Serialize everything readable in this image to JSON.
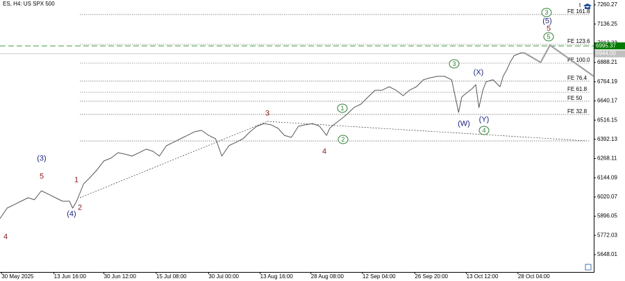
{
  "chart_data": {
    "type": "line",
    "title": "ES, H4:  US SPX 500",
    "xlim": [
      0,
      760
    ],
    "ylim": [
      5536,
      7291.6
    ],
    "xticks": [
      {
        "value": 2,
        "label": "30 May 2025"
      },
      {
        "value": 69,
        "label": "13 Jun 16:00"
      },
      {
        "value": 133,
        "label": "30 Jun 12:00"
      },
      {
        "value": 200,
        "label": "15 Jul 08:00"
      },
      {
        "value": 267,
        "label": "30 Jul 00:00"
      },
      {
        "value": 333,
        "label": "13 Aug 16:00"
      },
      {
        "value": 398,
        "label": "28 Aug 08:00"
      },
      {
        "value": 464,
        "label": "12 Sep 04:00"
      },
      {
        "value": 531,
        "label": "26 Sep 20:00"
      },
      {
        "value": 597,
        "label": "13 Oct 12:00"
      },
      {
        "value": 663,
        "label": "28 Oct 04:00"
      }
    ],
    "yticks": [
      7260.27,
      7136.25,
      7012.23,
      6888.21,
      6764.19,
      6640.17,
      6516.15,
      6392.13,
      6268.11,
      6144.09,
      6020.07,
      5896.05,
      5772.03,
      5648.01
    ],
    "series": [
      {
        "color": "#555555",
        "x": [
          0,
          9,
          18,
          27,
          36,
          44,
          53,
          62,
          71,
          80,
          89,
          93,
          98,
          107,
          116,
          124,
          133,
          142,
          151,
          160,
          169,
          178,
          187,
          196,
          204,
          213,
          222,
          231,
          240,
          249,
          258,
          267,
          276,
          284,
          293,
          302,
          311,
          320,
          329,
          338,
          347,
          356,
          364,
          373,
          382,
          391,
          400,
          409,
          418,
          422,
          427,
          436,
          444,
          453,
          462,
          471,
          480,
          489,
          498,
          507,
          516,
          524,
          533,
          542,
          551,
          560,
          569,
          578,
          587,
          591,
          596,
          604,
          609,
          613,
          618,
          622,
          631,
          640,
          644,
          649,
          653,
          658,
          667,
          671
        ],
        "values": [
          5881,
          5948,
          5970,
          5993,
          6015,
          6002,
          6060,
          6038,
          6015,
          5993,
          5993,
          5948,
          5993,
          6105,
          6150,
          6194,
          6253,
          6271,
          6306,
          6297,
          6284,
          6306,
          6329,
          6315,
          6284,
          6351,
          6373,
          6396,
          6418,
          6441,
          6450,
          6418,
          6396,
          6284,
          6351,
          6373,
          6396,
          6441,
          6477,
          6494,
          6486,
          6463,
          6418,
          6405,
          6477,
          6486,
          6494,
          6477,
          6418,
          6463,
          6486,
          6521,
          6553,
          6597,
          6620,
          6665,
          6709,
          6709,
          6732,
          6709,
          6674,
          6709,
          6732,
          6777,
          6790,
          6799,
          6799,
          6777,
          6566,
          6665,
          6687,
          6718,
          6745,
          6597,
          6709,
          6763,
          6777,
          6732,
          6799,
          6844,
          6889,
          6933,
          6951,
          6951
        ]
      },
      {
        "color": "#a0a0a0",
        "x": [
          671,
          692,
          704,
          760
        ],
        "values": [
          6951,
          6889,
          7000,
          6799
        ]
      }
    ],
    "levels": [
      {
        "label": "FE 161.8",
        "value": 7198
      },
      {
        "label": "FE 123.6",
        "value": 7005
      },
      {
        "label": "FE 100.0",
        "value": 6884
      },
      {
        "label": "FE 76.4",
        "value": 6768
      },
      {
        "label": "FE 61.8",
        "value": 6696
      },
      {
        "label": "FE 50",
        "value": 6638
      },
      {
        "label": "FE 32.8",
        "value": 6553
      },
      {
        "label": null,
        "value": 6382
      }
    ],
    "price_lines": [
      {
        "value": 6995.37,
        "label": "6995.37",
        "color": "#007a00"
      },
      {
        "value": 6944,
        "label": "6944.00",
        "color": "#c0c0c0"
      }
    ],
    "annotations": [
      "4",
      "(3)",
      "5",
      "1",
      "2",
      "(4)",
      "3",
      "4",
      "1",
      "2",
      "3",
      "(W)",
      "(X)",
      "(Y)",
      "4",
      "5",
      "5",
      "(5)",
      "3"
    ]
  }
}
